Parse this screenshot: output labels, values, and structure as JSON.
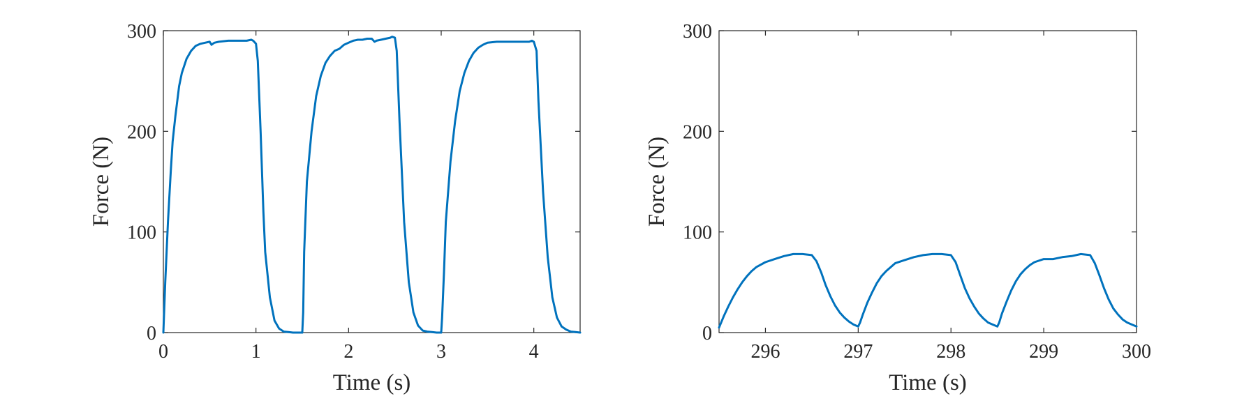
{
  "colors": {
    "series": "#0072BD",
    "axes": "#262626",
    "background": "#ffffff"
  },
  "chart_data": [
    {
      "type": "line",
      "title": "",
      "xlabel": "Time (s)",
      "ylabel": "Force (N)",
      "xlim": [
        0,
        4.5
      ],
      "ylim": [
        0,
        300
      ],
      "xticks": [
        0,
        1,
        2,
        3,
        4
      ],
      "yticks": [
        0,
        100,
        200,
        300
      ],
      "xtick_labels": [
        "0",
        "1",
        "2",
        "3",
        "4"
      ],
      "ytick_labels": [
        "0",
        "100",
        "200",
        "300"
      ],
      "grid": false,
      "series": [
        {
          "x": [
            0,
            0.02,
            0.05,
            0.08,
            0.1,
            0.13,
            0.15,
            0.17,
            0.2,
            0.25,
            0.3,
            0.35,
            0.4,
            0.45,
            0.5,
            0.52,
            0.55,
            0.6,
            0.7,
            0.8,
            0.9,
            0.95,
            0.97,
            1.0,
            1.02,
            1.05,
            1.08,
            1.1,
            1.15,
            1.2,
            1.25,
            1.3,
            1.35,
            1.4,
            1.45,
            1.5,
            1.51,
            1.52,
            1.55,
            1.6,
            1.65,
            1.7,
            1.75,
            1.8,
            1.85,
            1.9,
            1.95,
            2.0,
            2.05,
            2.1,
            2.15,
            2.2,
            2.25,
            2.28,
            2.3,
            2.35,
            2.4,
            2.45,
            2.47,
            2.5,
            2.52,
            2.55,
            2.6,
            2.65,
            2.7,
            2.75,
            2.8,
            2.85,
            2.9,
            2.95,
            3.0,
            3.01,
            3.03,
            3.05,
            3.1,
            3.15,
            3.2,
            3.25,
            3.3,
            3.35,
            3.4,
            3.45,
            3.5,
            3.6,
            3.7,
            3.8,
            3.9,
            3.95,
            3.98,
            4.0,
            4.03,
            4.05,
            4.1,
            4.15,
            4.2,
            4.25,
            4.3,
            4.35,
            4.4,
            4.45,
            4.5
          ],
          "y": [
            0,
            50,
            110,
            160,
            190,
            215,
            230,
            245,
            258,
            272,
            280,
            285,
            287,
            288,
            289,
            286,
            288,
            289,
            290,
            290,
            290,
            291,
            290,
            287,
            270,
            200,
            120,
            80,
            35,
            12,
            4,
            1,
            0.5,
            0,
            0,
            0,
            20,
            80,
            150,
            200,
            235,
            255,
            268,
            275,
            280,
            282,
            286,
            288,
            290,
            291,
            291,
            292,
            292,
            289,
            290,
            291,
            292,
            293,
            294,
            293,
            280,
            210,
            110,
            50,
            20,
            7,
            2,
            1,
            0.5,
            0,
            0,
            15,
            60,
            110,
            170,
            210,
            240,
            258,
            270,
            278,
            283,
            286,
            288,
            289,
            289,
            289,
            289,
            289,
            290,
            289,
            280,
            230,
            140,
            75,
            35,
            15,
            6,
            3,
            1,
            0.5,
            0
          ]
        }
      ]
    },
    {
      "type": "line",
      "title": "",
      "xlabel": "Time (s)",
      "ylabel": "Force (N)",
      "xlim": [
        295.5,
        300
      ],
      "ylim": [
        0,
        300
      ],
      "xticks": [
        296,
        297,
        298,
        299,
        300
      ],
      "yticks": [
        0,
        100,
        200,
        300
      ],
      "xtick_labels": [
        "296",
        "297",
        "298",
        "299",
        "300"
      ],
      "ytick_labels": [
        "0",
        "100",
        "200",
        "300"
      ],
      "grid": false,
      "series": [
        {
          "x": [
            295.5,
            295.55,
            295.6,
            295.65,
            295.7,
            295.75,
            295.8,
            295.85,
            295.9,
            296.0,
            296.1,
            296.2,
            296.3,
            296.4,
            296.5,
            296.55,
            296.6,
            296.65,
            296.7,
            296.75,
            296.8,
            296.85,
            296.9,
            296.95,
            297.0,
            297.02,
            297.05,
            297.1,
            297.15,
            297.2,
            297.25,
            297.3,
            297.35,
            297.4,
            297.5,
            297.6,
            297.7,
            297.8,
            297.9,
            298.0,
            298.05,
            298.1,
            298.15,
            298.2,
            298.25,
            298.3,
            298.35,
            298.4,
            298.45,
            298.5,
            298.52,
            298.55,
            298.6,
            298.65,
            298.7,
            298.75,
            298.8,
            298.85,
            298.9,
            299.0,
            299.1,
            299.15,
            299.2,
            299.3,
            299.4,
            299.5,
            299.55,
            299.6,
            299.65,
            299.7,
            299.75,
            299.8,
            299.85,
            299.9,
            299.95,
            300.0
          ],
          "y": [
            5,
            16,
            26,
            35,
            43,
            50,
            56,
            61,
            65,
            70,
            73,
            76,
            78,
            78,
            77,
            71,
            60,
            47,
            36,
            27,
            20,
            15,
            11,
            8,
            6,
            10,
            18,
            30,
            40,
            49,
            56,
            61,
            65,
            69,
            72,
            75,
            77,
            78,
            78,
            77,
            70,
            57,
            44,
            34,
            26,
            19,
            14,
            10,
            8,
            6,
            10,
            19,
            31,
            42,
            51,
            58,
            63,
            67,
            70,
            73,
            73,
            74,
            75,
            76,
            78,
            77,
            69,
            57,
            44,
            33,
            24,
            18,
            13,
            10,
            8,
            6
          ]
        }
      ]
    }
  ]
}
